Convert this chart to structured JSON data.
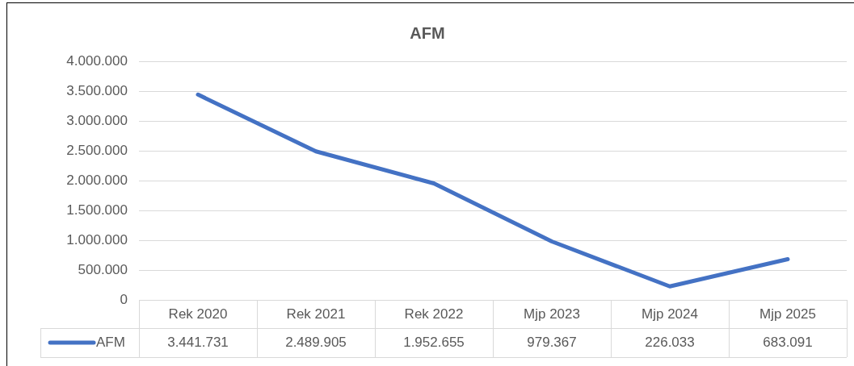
{
  "chart_data": {
    "type": "line",
    "title": "AFM",
    "categories": [
      "Rek 2020",
      "Rek 2021",
      "Rek 2022",
      "Mjp 2023",
      "Mjp 2024",
      "Mjp 2025"
    ],
    "series": [
      {
        "name": "AFM",
        "color": "#4472c4",
        "values": [
          3441731,
          2489905,
          1952655,
          979367,
          226033,
          683091
        ],
        "value_labels": [
          "3.441.731",
          "2.489.905",
          "1.952.655",
          "979.367",
          "226.033",
          "683.091"
        ]
      }
    ],
    "ylim": [
      0,
      4000000
    ],
    "yticks": [
      0,
      {
        "value": 500000,
        "label": "500.000"
      },
      {
        "value": 1000000,
        "label": "1.000.000"
      },
      {
        "value": 1500000,
        "label": "1.500.000"
      },
      {
        "value": 2000000,
        "label": "2.000.000"
      },
      {
        "value": 2500000,
        "label": "2.500.000"
      },
      {
        "value": 3000000,
        "label": "3.000.000"
      },
      {
        "value": 3500000,
        "label": "3.500.000"
      },
      {
        "value": 4000000,
        "label": "4.000.000"
      }
    ],
    "grid": "y",
    "legend": "bottom"
  }
}
